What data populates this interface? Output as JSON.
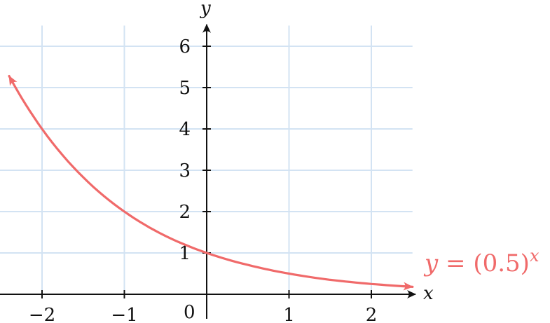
{
  "chart_data": {
    "type": "line",
    "xlabel": "x",
    "ylabel": "y",
    "xlim": [
      -2.5,
      2.5
    ],
    "ylim": [
      0,
      6.5
    ],
    "grid": true,
    "x_ticks": [
      {
        "value": -2,
        "label": "−2"
      },
      {
        "value": -1,
        "label": "−1"
      },
      {
        "value": 1,
        "label": "1"
      },
      {
        "value": 2,
        "label": "2"
      }
    ],
    "y_ticks": [
      {
        "value": 1,
        "label": "1"
      },
      {
        "value": 2,
        "label": "2"
      },
      {
        "value": 3,
        "label": "3"
      },
      {
        "value": 4,
        "label": "4"
      },
      {
        "value": 5,
        "label": "5"
      },
      {
        "value": 6,
        "label": "6"
      }
    ],
    "origin_label": "0",
    "series": [
      {
        "name": "y = (0.5)^x",
        "label_parts": {
          "y": "y",
          "equals": " = (0.5)",
          "exp": "x"
        },
        "color": "#f06a6a",
        "function": "0.5^x",
        "x": [
          -2.4,
          -2,
          -1.5,
          -1,
          -0.5,
          0,
          0.5,
          1,
          1.5,
          2,
          2.5
        ],
        "y": [
          5.28,
          4,
          2.83,
          2,
          1.41,
          1,
          0.71,
          0.5,
          0.35,
          0.25,
          0.18
        ]
      }
    ]
  }
}
